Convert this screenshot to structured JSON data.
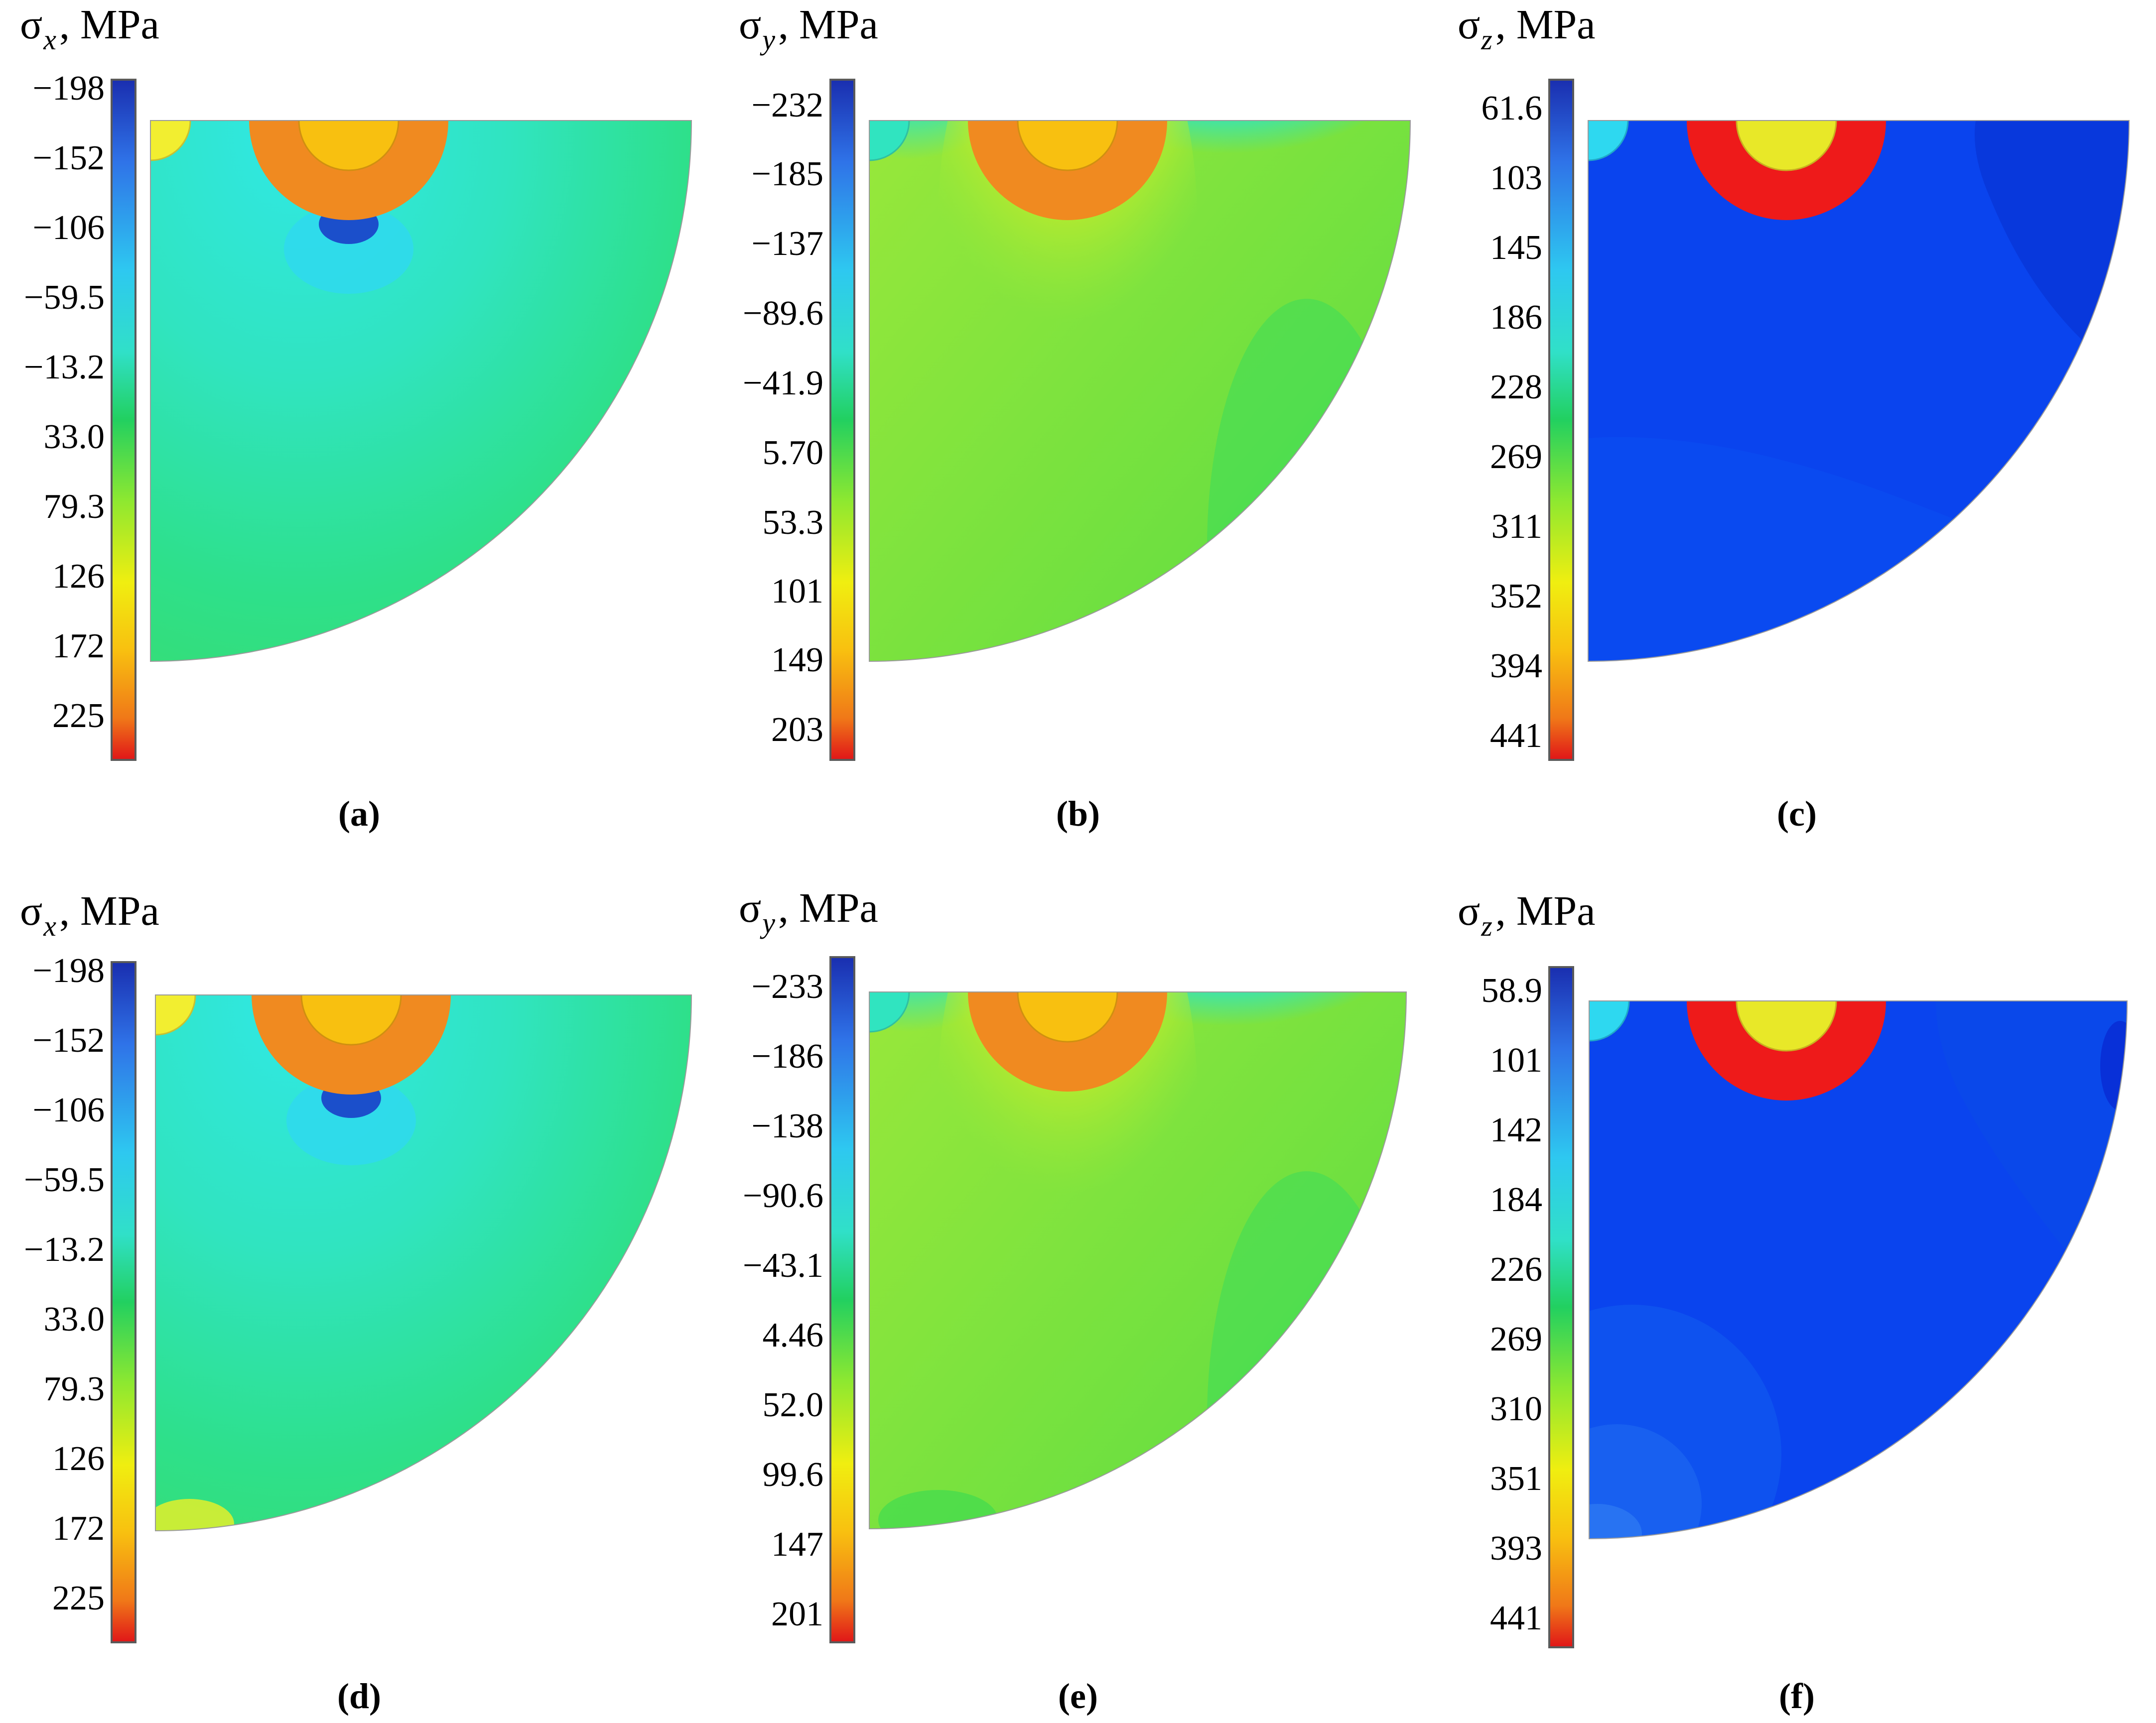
{
  "panels": [
    {
      "id": "a",
      "label": "(a)",
      "title": {
        "symbol": "σ",
        "subscript": "x",
        "unit": ", MPa"
      },
      "ticks": [
        "−198",
        "−152",
        "−106",
        "−59.5",
        "−13.2",
        "33.0",
        "79.3",
        "126",
        "172",
        "225"
      ],
      "scheme": "sigma-xy"
    },
    {
      "id": "b",
      "label": "(b)",
      "title": {
        "symbol": "σ",
        "subscript": "y",
        "unit": ", MPa"
      },
      "ticks": [
        "−232",
        "−185",
        "−137",
        "−89.6",
        "−41.9",
        "5.70",
        "53.3",
        "101",
        "149",
        "203"
      ],
      "scheme": "sigma-xy"
    },
    {
      "id": "c",
      "label": "(c)",
      "title": {
        "symbol": "σ",
        "subscript": "z",
        "unit": ", MPa"
      },
      "ticks": [
        "61.6",
        "103",
        "145",
        "186",
        "228",
        "269",
        "311",
        "352",
        "394",
        "441"
      ],
      "scheme": "sigma-z"
    },
    {
      "id": "d",
      "label": "(d)",
      "title": {
        "symbol": "σ",
        "subscript": "x",
        "unit": ", MPa"
      },
      "ticks": [
        "−198",
        "−152",
        "−106",
        "−59.5",
        "−13.2",
        "33.0",
        "79.3",
        "126",
        "172",
        "225"
      ],
      "scheme": "sigma-xy"
    },
    {
      "id": "e",
      "label": "(e)",
      "title": {
        "symbol": "σ",
        "subscript": "y",
        "unit": ", MPa"
      },
      "ticks": [
        "−233",
        "−186",
        "−138",
        "−90.6",
        "−43.1",
        "4.46",
        "52.0",
        "99.6",
        "147",
        "201"
      ],
      "scheme": "sigma-xy"
    },
    {
      "id": "f",
      "label": "(f)",
      "title": {
        "symbol": "σ",
        "subscript": "z",
        "unit": ", MPa"
      },
      "ticks": [
        "58.9",
        "101",
        "142",
        "184",
        "226",
        "269",
        "310",
        "351",
        "393",
        "441"
      ],
      "scheme": "sigma-z"
    }
  ]
}
